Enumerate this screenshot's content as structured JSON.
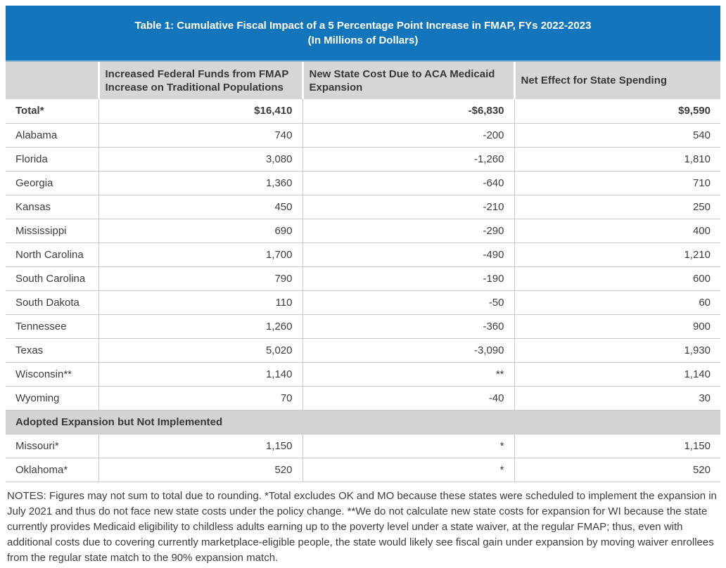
{
  "title": {
    "line1": "Table 1: Cumulative Fiscal Impact of a 5 Percentage Point Increase in FMAP, FYs 2022-2023",
    "line2": "(In Millions of Dollars)"
  },
  "table": {
    "columns": [
      "",
      "Increased Federal Funds from FMAP Increase on Traditional Populations",
      "New State Cost Due to ACA Medicaid Expansion",
      "Net Effect for State Spending"
    ],
    "body": [
      {
        "kind": "total",
        "cells": [
          "Total*",
          "$16,410",
          "-$6,830",
          "$9,590"
        ]
      },
      {
        "kind": "data",
        "cells": [
          "Alabama",
          "740",
          "-200",
          "540"
        ]
      },
      {
        "kind": "data",
        "cells": [
          "Florida",
          "3,080",
          "-1,260",
          "1,810"
        ]
      },
      {
        "kind": "data",
        "cells": [
          "Georgia",
          "1,360",
          "-640",
          "710"
        ]
      },
      {
        "kind": "data",
        "cells": [
          "Kansas",
          "450",
          "-210",
          "250"
        ]
      },
      {
        "kind": "data",
        "cells": [
          "Mississippi",
          "690",
          "-290",
          "400"
        ]
      },
      {
        "kind": "data",
        "cells": [
          "North Carolina",
          "1,700",
          "-490",
          "1,210"
        ]
      },
      {
        "kind": "data",
        "cells": [
          "South Carolina",
          "790",
          "-190",
          "600"
        ]
      },
      {
        "kind": "data",
        "cells": [
          "South Dakota",
          "110",
          "-50",
          "60"
        ]
      },
      {
        "kind": "data",
        "cells": [
          "Tennessee",
          "1,260",
          "-360",
          "900"
        ]
      },
      {
        "kind": "data",
        "cells": [
          "Texas",
          "5,020",
          "-3,090",
          "1,930"
        ]
      },
      {
        "kind": "data",
        "cells": [
          "Wisconsin**",
          "1,140",
          "**",
          "1,140"
        ]
      },
      {
        "kind": "data",
        "cells": [
          "Wyoming",
          "70",
          "-40",
          "30"
        ]
      },
      {
        "kind": "section",
        "label": "Adopted Expansion but Not Implemented"
      },
      {
        "kind": "data",
        "cells": [
          "Missouri*",
          "1,150",
          "*",
          "1,150"
        ]
      },
      {
        "kind": "data",
        "cells": [
          "Oklahoma*",
          "520",
          "*",
          "520"
        ]
      }
    ]
  },
  "notes": "NOTES: Figures may not sum to total due to rounding. *Total excludes OK and MO because these states were scheduled to implement the expansion in July 2021 and thus do not face new state costs under the policy change. **We do not calculate new state costs for expansion for WI because the state currently provides Medicaid eligibility to childless adults earning up to the poverty level under a state waiver, at the regular FMAP; thus, even with additional costs due to covering currently marketplace-eligible people, the state would likely see fiscal gain under expansion by moving waiver enrollees from the regular state match to the 90% expansion match.",
  "colors": {
    "banner_blue": "#1376BD",
    "banner_underline": "#8fb4d4",
    "header_gray": "#d6d6d6",
    "section_gray": "#d3d3d3",
    "row_border": "#c9c9c9",
    "text": "#3c3c3c"
  },
  "chart_data": {
    "type": "table",
    "title": "Table 1: Cumulative Fiscal Impact of a 5 Percentage Point Increase in FMAP, FYs 2022-2023 (In Millions of Dollars)",
    "units": "millions of dollars",
    "columns": [
      "Increased Federal Funds from FMAP Increase on Traditional Populations",
      "New State Cost Due to ACA Medicaid Expansion",
      "Net Effect for State Spending"
    ],
    "rows": [
      {
        "state": "Total*",
        "increased_federal_funds": 16410,
        "new_state_cost": -6830,
        "net_effect": 9590
      },
      {
        "state": "Alabama",
        "increased_federal_funds": 740,
        "new_state_cost": -200,
        "net_effect": 540
      },
      {
        "state": "Florida",
        "increased_federal_funds": 3080,
        "new_state_cost": -1260,
        "net_effect": 1810
      },
      {
        "state": "Georgia",
        "increased_federal_funds": 1360,
        "new_state_cost": -640,
        "net_effect": 710
      },
      {
        "state": "Kansas",
        "increased_federal_funds": 450,
        "new_state_cost": -210,
        "net_effect": 250
      },
      {
        "state": "Mississippi",
        "increased_federal_funds": 690,
        "new_state_cost": -290,
        "net_effect": 400
      },
      {
        "state": "North Carolina",
        "increased_federal_funds": 1700,
        "new_state_cost": -490,
        "net_effect": 1210
      },
      {
        "state": "South Carolina",
        "increased_federal_funds": 790,
        "new_state_cost": -190,
        "net_effect": 600
      },
      {
        "state": "South Dakota",
        "increased_federal_funds": 110,
        "new_state_cost": -50,
        "net_effect": 60
      },
      {
        "state": "Tennessee",
        "increased_federal_funds": 1260,
        "new_state_cost": -360,
        "net_effect": 900
      },
      {
        "state": "Texas",
        "increased_federal_funds": 5020,
        "new_state_cost": -3090,
        "net_effect": 1930
      },
      {
        "state": "Wisconsin**",
        "increased_federal_funds": 1140,
        "new_state_cost": "**",
        "net_effect": 1140
      },
      {
        "state": "Wyoming",
        "increased_federal_funds": 70,
        "new_state_cost": -40,
        "net_effect": 30
      },
      {
        "section": "Adopted Expansion but Not Implemented"
      },
      {
        "state": "Missouri*",
        "increased_federal_funds": 1150,
        "new_state_cost": "*",
        "net_effect": 1150
      },
      {
        "state": "Oklahoma*",
        "increased_federal_funds": 520,
        "new_state_cost": "*",
        "net_effect": 520
      }
    ]
  }
}
